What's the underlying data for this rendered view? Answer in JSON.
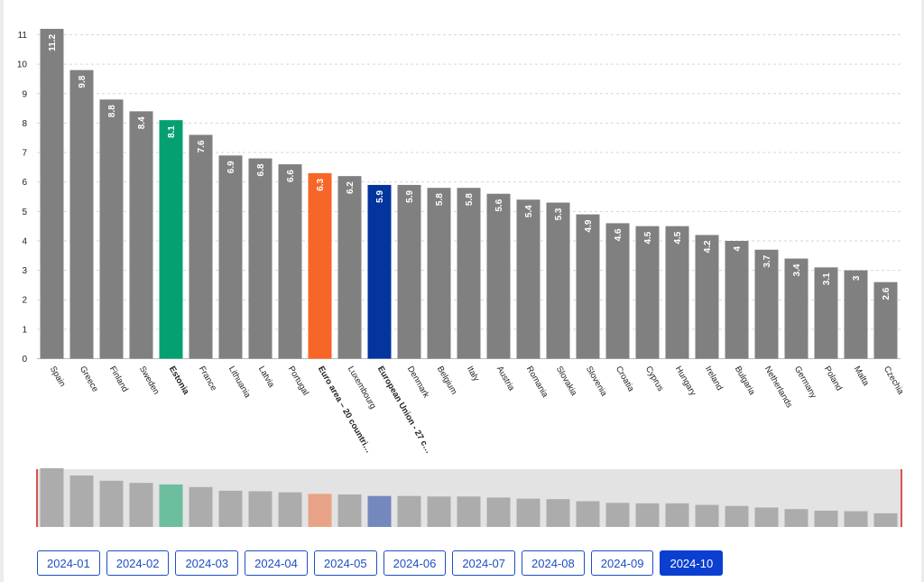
{
  "chart_data": {
    "type": "bar",
    "title": "",
    "xlabel": "",
    "ylabel": "",
    "ylim": [
      0,
      11
    ],
    "yticks": [
      0,
      1,
      2,
      3,
      4,
      5,
      6,
      7,
      8,
      9,
      10,
      11
    ],
    "grid": true,
    "categories": [
      "Spain",
      "Greece",
      "Finland",
      "Sweden",
      "Estonia",
      "France",
      "Lithuania",
      "Latvia",
      "Portugal",
      "Euro area – 20 countri…",
      "Luxembourg",
      "European Union - 27 c…",
      "Denmark",
      "Belgium",
      "Italy",
      "Austria",
      "Romania",
      "Slovakia",
      "Slovenia",
      "Croatia",
      "Cyprus",
      "Hungary",
      "Ireland",
      "Bulgaria",
      "Netherlands",
      "Germany",
      "Poland",
      "Malta",
      "Czechia"
    ],
    "values": [
      11.2,
      9.8,
      8.8,
      8.4,
      8.1,
      7.6,
      6.9,
      6.8,
      6.6,
      6.3,
      6.2,
      5.9,
      5.9,
      5.8,
      5.8,
      5.6,
      5.4,
      5.3,
      4.9,
      4.6,
      4.5,
      4.5,
      4.2,
      4,
      3.7,
      3.4,
      3.1,
      3,
      2.6
    ],
    "colors": {
      "default": "#808080",
      "Estonia": "#05a071",
      "Euro area – 20 countri…": "#f76628",
      "European Union - 27 c…": "#04349e"
    },
    "navigator_colors": {
      "default": "#acacac",
      "Estonia": "#6dbd9f",
      "Euro area – 20 countri…": "#e8a386",
      "European Union - 27 c…": "#7488bd"
    },
    "bold_categories": [
      "Estonia",
      "Euro area – 20 countri…",
      "European Union - 27 c…"
    ]
  },
  "periods": [
    "2024-01",
    "2024-02",
    "2024-03",
    "2024-04",
    "2024-05",
    "2024-06",
    "2024-07",
    "2024-08",
    "2024-09",
    "2024-10"
  ],
  "active_period": "2024-10"
}
